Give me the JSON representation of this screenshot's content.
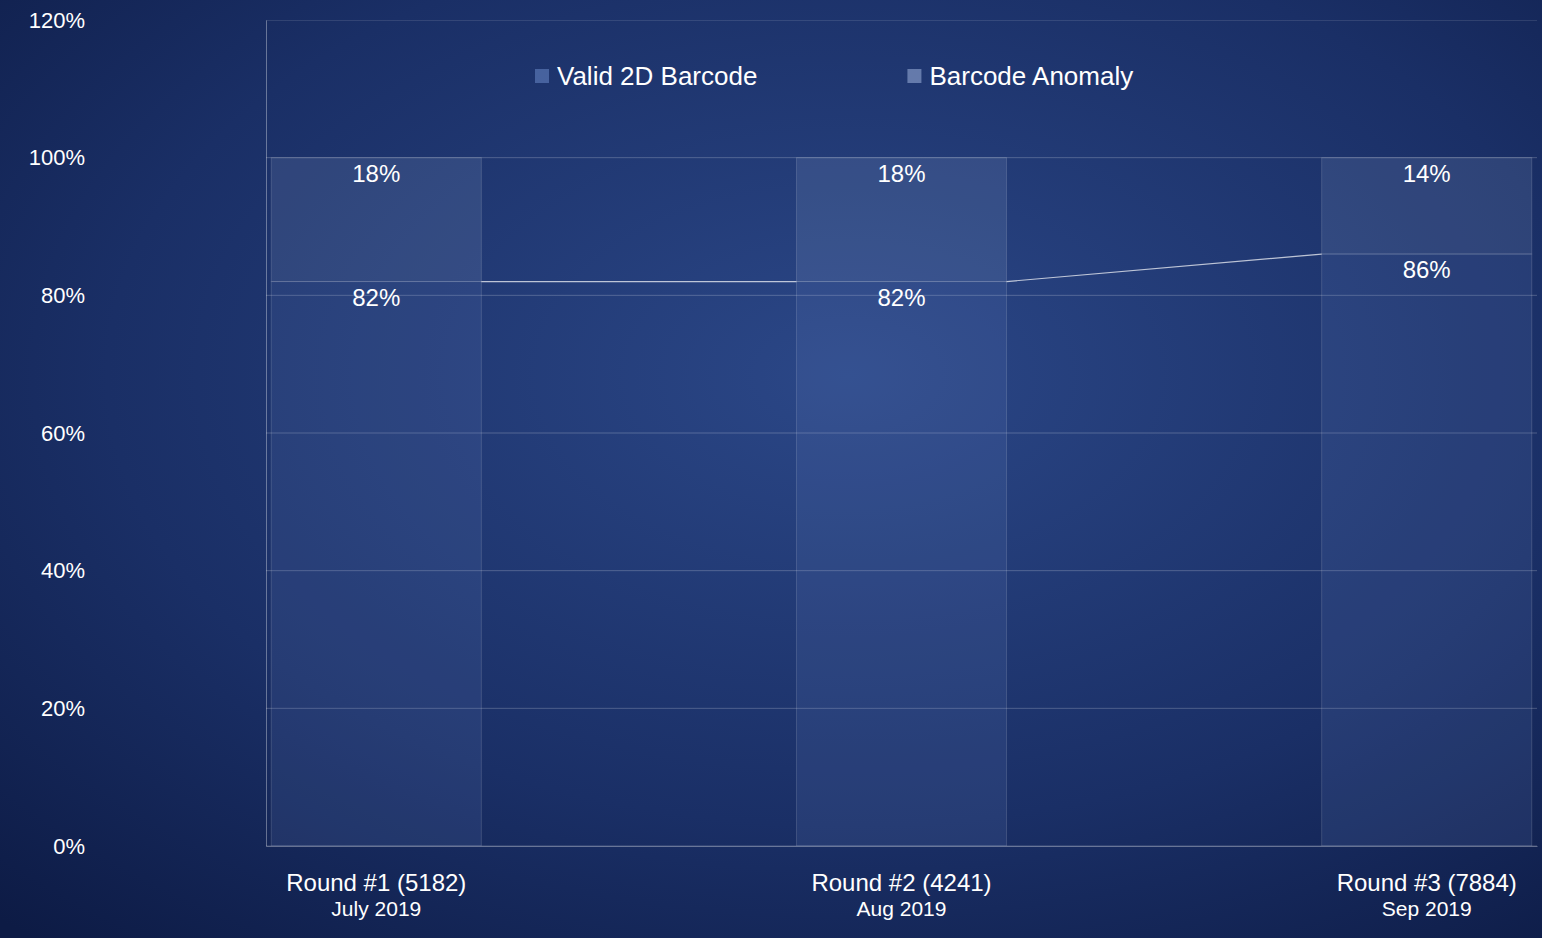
{
  "chart_data": {
    "type": "bar",
    "stacked": true,
    "categories": [
      "Round #1 (5182)\nJuly 2019",
      "Round #2 (4241)\nAug 2019",
      "Round #3 (7884)\nSep 2019"
    ],
    "series": [
      {
        "name": "Valid 2D Barcode",
        "color": "#6f8fd0",
        "values": [
          82,
          82,
          86
        ],
        "value_labels": [
          "82%",
          "82%",
          "86%"
        ]
      },
      {
        "name": "Barcode Anomaly",
        "color": "#a9bde6",
        "values": [
          18,
          18,
          14
        ],
        "value_labels": [
          "18%",
          "18%",
          "14%"
        ]
      }
    ],
    "ylim": [
      0,
      120
    ],
    "yticks": [
      {
        "value": 0,
        "label": "0%"
      },
      {
        "value": 20,
        "label": "20%"
      },
      {
        "value": 40,
        "label": "40%"
      },
      {
        "value": 60,
        "label": "60%"
      },
      {
        "value": 80,
        "label": "80%"
      },
      {
        "value": 100,
        "label": "100%"
      },
      {
        "value": 120,
        "label": "120%"
      }
    ],
    "grid": true,
    "legend": "top",
    "data_labels": true
  }
}
